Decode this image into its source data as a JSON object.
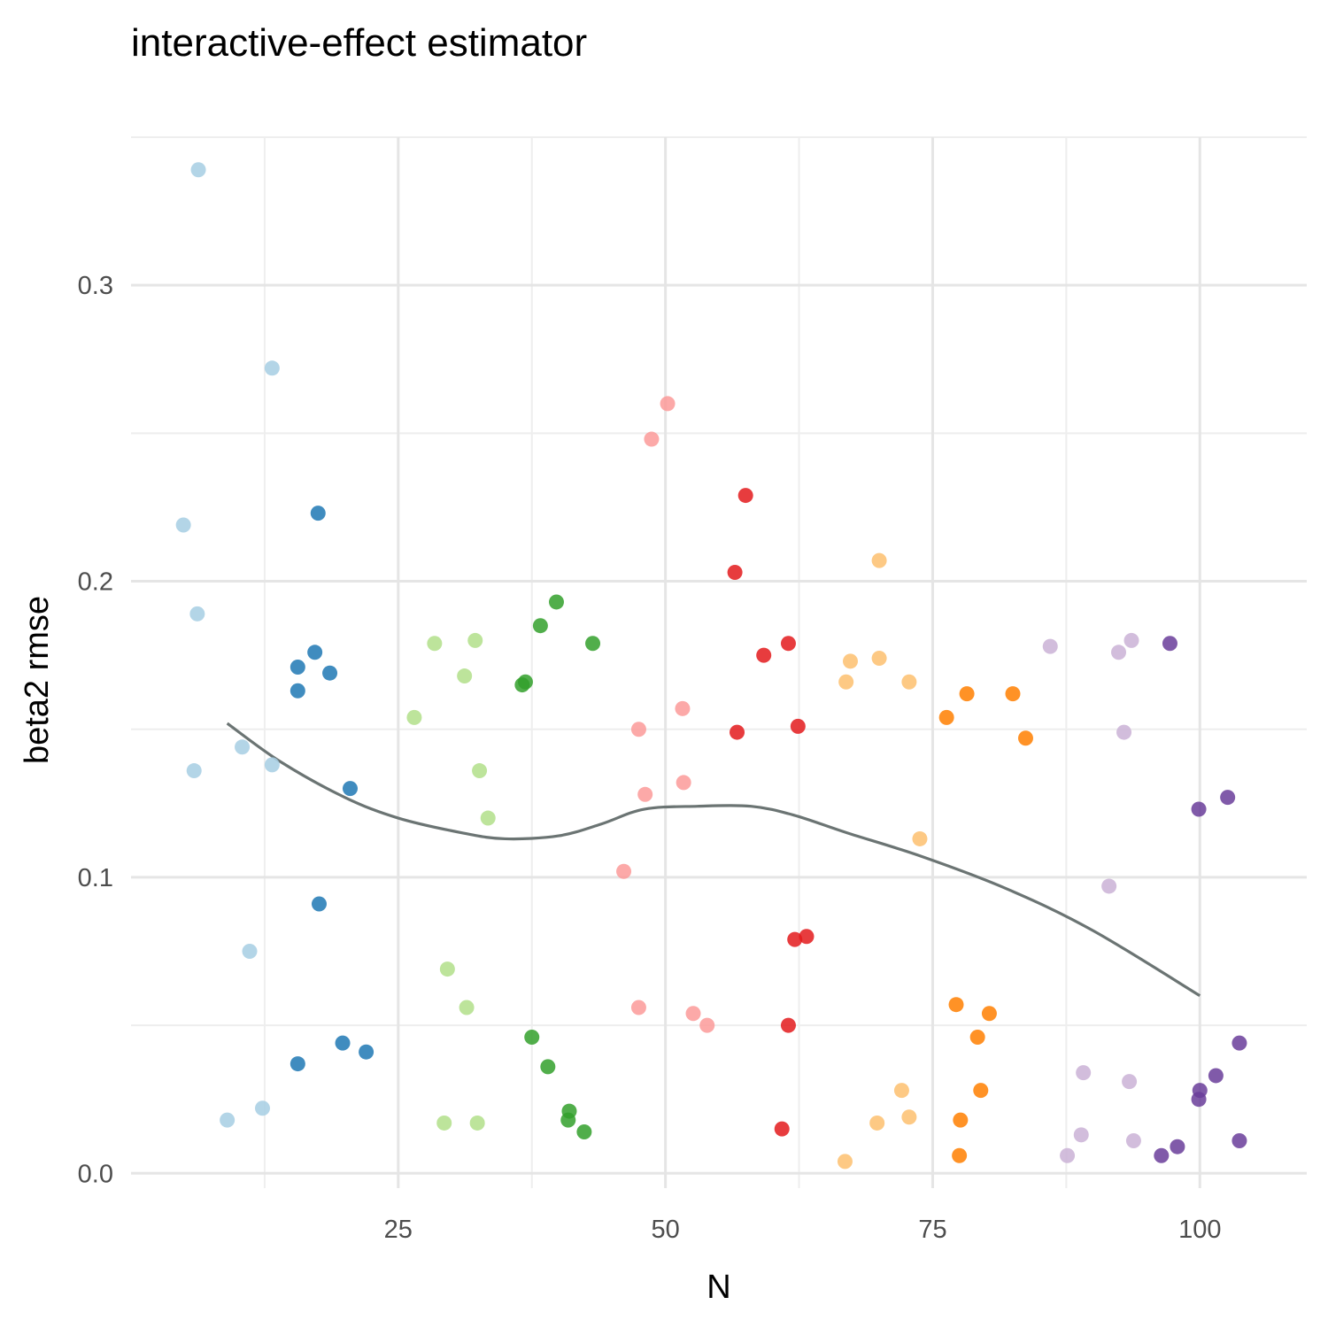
{
  "chart_data": {
    "type": "scatter",
    "title": "interactive-effect estimator",
    "xlabel": "N",
    "ylabel": "beta2 rmse",
    "xlim": [
      0,
      110
    ],
    "ylim": [
      -0.005,
      0.35
    ],
    "x_ticks": [
      25,
      50,
      75,
      100
    ],
    "x_tick_labels": [
      "25",
      "50",
      "75",
      "100"
    ],
    "x_minor_ticks": [
      12.5,
      37.5,
      62.5,
      87.5
    ],
    "y_ticks": [
      0,
      0.1,
      0.2,
      0.3
    ],
    "y_tick_labels": [
      "0.0",
      "0.1",
      "0.2",
      "0.3"
    ],
    "y_minor_ticks": [
      0.05,
      0.15,
      0.25,
      0.35
    ],
    "grid": true,
    "legend": "none",
    "series": [
      {
        "color": "#a6cee3",
        "points": [
          [
            6.3,
            0.339
          ],
          [
            4.9,
            0.219
          ],
          [
            13.2,
            0.272
          ],
          [
            6.2,
            0.189
          ],
          [
            10.4,
            0.144
          ],
          [
            5.9,
            0.136
          ],
          [
            13.2,
            0.138
          ],
          [
            11.1,
            0.075
          ],
          [
            9,
            0.018
          ],
          [
            12.3,
            0.022
          ]
        ]
      },
      {
        "color": "#1f78b4",
        "points": [
          [
            17.5,
            0.223
          ],
          [
            17.2,
            0.176
          ],
          [
            15.6,
            0.171
          ],
          [
            18.6,
            0.169
          ],
          [
            15.6,
            0.163
          ],
          [
            20.5,
            0.13
          ],
          [
            17.6,
            0.091
          ],
          [
            19.8,
            0.044
          ],
          [
            22,
            0.041
          ],
          [
            15.6,
            0.037
          ]
        ]
      },
      {
        "color": "#b2df8a",
        "points": [
          [
            28.4,
            0.179
          ],
          [
            32.2,
            0.18
          ],
          [
            31.2,
            0.168
          ],
          [
            26.5,
            0.154
          ],
          [
            32.6,
            0.136
          ],
          [
            33.4,
            0.12
          ],
          [
            29.6,
            0.069
          ],
          [
            31.4,
            0.056
          ],
          [
            29.3,
            0.017
          ],
          [
            32.4,
            0.017
          ]
        ]
      },
      {
        "color": "#33a02c",
        "points": [
          [
            39.8,
            0.193
          ],
          [
            38.3,
            0.185
          ],
          [
            43.2,
            0.179
          ],
          [
            36.9,
            0.166
          ],
          [
            36.6,
            0.165
          ],
          [
            37.5,
            0.046
          ],
          [
            39,
            0.036
          ],
          [
            41,
            0.021
          ],
          [
            40.9,
            0.018
          ],
          [
            42.4,
            0.014
          ]
        ]
      },
      {
        "color": "#fb9a99",
        "points": [
          [
            50.2,
            0.26
          ],
          [
            48.7,
            0.248
          ],
          [
            51.6,
            0.157
          ],
          [
            47.5,
            0.15
          ],
          [
            51.7,
            0.132
          ],
          [
            48.1,
            0.128
          ],
          [
            46.1,
            0.102
          ],
          [
            47.5,
            0.056
          ],
          [
            52.6,
            0.054
          ],
          [
            53.9,
            0.05
          ]
        ]
      },
      {
        "color": "#e31a1c",
        "points": [
          [
            57.5,
            0.229
          ],
          [
            56.5,
            0.203
          ],
          [
            61.5,
            0.179
          ],
          [
            59.2,
            0.175
          ],
          [
            56.7,
            0.149
          ],
          [
            62.4,
            0.151
          ],
          [
            63.2,
            0.08
          ],
          [
            62.1,
            0.079
          ],
          [
            61.5,
            0.05
          ],
          [
            60.9,
            0.015
          ]
        ]
      },
      {
        "color": "#fdbf6f",
        "points": [
          [
            70,
            0.207
          ],
          [
            67.3,
            0.173
          ],
          [
            70,
            0.174
          ],
          [
            66.9,
            0.166
          ],
          [
            72.8,
            0.166
          ],
          [
            73.8,
            0.113
          ],
          [
            72.1,
            0.028
          ],
          [
            72.8,
            0.019
          ],
          [
            69.8,
            0.017
          ],
          [
            66.8,
            0.004
          ]
        ]
      },
      {
        "color": "#ff7f00",
        "points": [
          [
            78.2,
            0.162
          ],
          [
            82.5,
            0.162
          ],
          [
            76.3,
            0.154
          ],
          [
            83.7,
            0.147
          ],
          [
            77.2,
            0.057
          ],
          [
            80.3,
            0.054
          ],
          [
            79.2,
            0.046
          ],
          [
            79.5,
            0.028
          ],
          [
            77.6,
            0.018
          ],
          [
            77.5,
            0.006
          ]
        ]
      },
      {
        "color": "#cab2d6",
        "points": [
          [
            86,
            0.178
          ],
          [
            93.6,
            0.18
          ],
          [
            92.4,
            0.176
          ],
          [
            92.9,
            0.149
          ],
          [
            91.5,
            0.097
          ],
          [
            89.1,
            0.034
          ],
          [
            93.4,
            0.031
          ],
          [
            88.9,
            0.013
          ],
          [
            93.8,
            0.011
          ],
          [
            87.6,
            0.006
          ]
        ]
      },
      {
        "color": "#6a3d9a",
        "points": [
          [
            97.2,
            0.179
          ],
          [
            102.6,
            0.127
          ],
          [
            99.9,
            0.123
          ],
          [
            103.7,
            0.044
          ],
          [
            101.5,
            0.033
          ],
          [
            100,
            0.028
          ],
          [
            99.9,
            0.025
          ],
          [
            103.7,
            0.011
          ],
          [
            97.9,
            0.009
          ],
          [
            96.4,
            0.006
          ]
        ]
      }
    ],
    "trend_line": {
      "color": "#6b7473",
      "points": [
        [
          9,
          0.152
        ],
        [
          14,
          0.139
        ],
        [
          20,
          0.127
        ],
        [
          25,
          0.12
        ],
        [
          31,
          0.115
        ],
        [
          35,
          0.113
        ],
        [
          40,
          0.114
        ],
        [
          44,
          0.118
        ],
        [
          48,
          0.123
        ],
        [
          53,
          0.124
        ],
        [
          58,
          0.124
        ],
        [
          62,
          0.121
        ],
        [
          67,
          0.115
        ],
        [
          74,
          0.107
        ],
        [
          82,
          0.096
        ],
        [
          90,
          0.082
        ],
        [
          100,
          0.06
        ]
      ]
    }
  }
}
